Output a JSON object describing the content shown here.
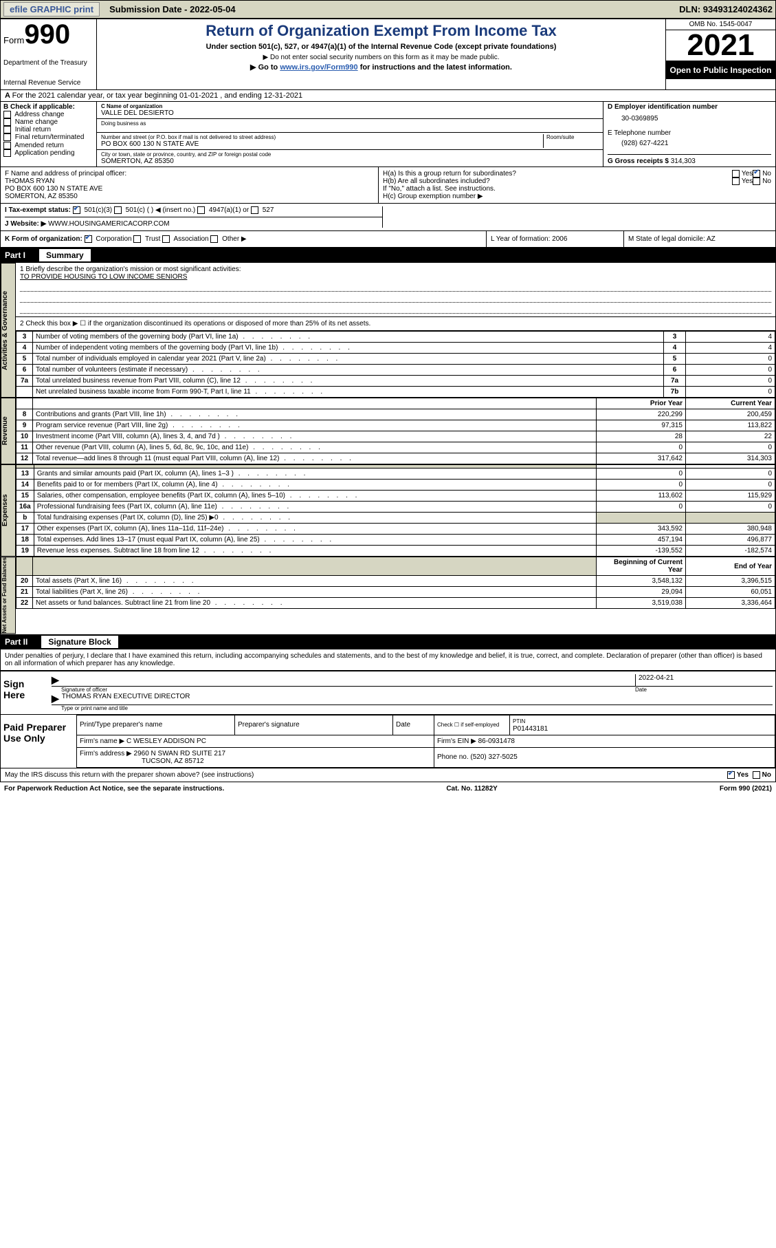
{
  "topbar": {
    "efile": "efile GRAPHIC print",
    "sub_lbl": "Submission Date - ",
    "sub_date": "2022-05-04",
    "dln": "DLN: 93493124024362"
  },
  "header": {
    "form_word": "Form",
    "form_num": "990",
    "dept": "Department of the Treasury",
    "irs": "Internal Revenue Service",
    "title": "Return of Organization Exempt From Income Tax",
    "sub": "Under section 501(c), 527, or 4947(a)(1) of the Internal Revenue Code (except private foundations)",
    "note1": "▶ Do not enter social security numbers on this form as it may be made public.",
    "note2_pre": "▶ Go to ",
    "note2_link": "www.irs.gov/Form990",
    "note2_post": " for instructions and the latest information.",
    "omb": "OMB No. 1545-0047",
    "year": "2021",
    "open": "Open to Public Inspection"
  },
  "yearline": "For the 2021 calendar year, or tax year beginning 01-01-2021   , and ending 12-31-2021",
  "b": {
    "hdr": "B Check if applicable:",
    "opts": [
      "Address change",
      "Name change",
      "Initial return",
      "Final return/terminated",
      "Amended return",
      "Application pending"
    ]
  },
  "c": {
    "name_lbl": "C Name of organization",
    "name": "VALLE DEL DESIERTO",
    "dba_lbl": "Doing business as",
    "street_lbl": "Number and street (or P.O. box if mail is not delivered to street address)",
    "room_lbl": "Room/suite",
    "street": "PO BOX 600 130 N STATE AVE",
    "city_lbl": "City or town, state or province, country, and ZIP or foreign postal code",
    "city": "SOMERTON, AZ  85350"
  },
  "d": {
    "ein_lbl": "D Employer identification number",
    "ein": "30-0369895",
    "tel_lbl": "E Telephone number",
    "tel": "(928) 627-4221",
    "gross_lbl": "G Gross receipts $",
    "gross": "314,303"
  },
  "f": {
    "lbl": "F  Name and address of principal officer:",
    "l1": "THOMAS RYAN",
    "l2": "PO BOX 600 130 N STATE AVE",
    "l3": "SOMERTON, AZ  85350"
  },
  "h": {
    "a": "H(a)  Is this a group return for subordinates?",
    "b": "H(b)  Are all subordinates included?",
    "bnote": "If \"No,\" attach a list. See instructions.",
    "c": "H(c)  Group exemption number ▶",
    "yes": "Yes",
    "no": "No"
  },
  "status": {
    "i": "I   Tax-exempt status:",
    "o1": "501(c)(3)",
    "o2": "501(c) (  ) ◀ (insert no.)",
    "o3": "4947(a)(1) or",
    "o4": "527",
    "j": "J   Website: ▶",
    "site": "WWW.HOUSINGAMERICACORP.COM"
  },
  "klm": {
    "k": "K Form of organization:",
    "k1": "Corporation",
    "k2": "Trust",
    "k3": "Association",
    "k4": "Other ▶",
    "l": "L Year of formation: 2006",
    "m": "M State of legal domicile: AZ"
  },
  "part1": {
    "num": "Part I",
    "lbl": "Summary"
  },
  "summary": {
    "q1": "1   Briefly describe the organization's mission or most significant activities:",
    "q1a": "TO PROVIDE HOUSING TO LOW INCOME SENIORS",
    "q2": "2   Check this box ▶ ☐  if the organization discontinued its operations or disposed of more than 25% of its net assets."
  },
  "vtabs": {
    "gov": "Activities & Governance",
    "rev": "Revenue",
    "exp": "Expenses",
    "net": "Net Assets or Fund Balances"
  },
  "govrows": [
    {
      "n": "3",
      "d": "Number of voting members of the governing body (Part VI, line 1a)",
      "b": "3",
      "v": "4"
    },
    {
      "n": "4",
      "d": "Number of independent voting members of the governing body (Part VI, line 1b)",
      "b": "4",
      "v": "4"
    },
    {
      "n": "5",
      "d": "Total number of individuals employed in calendar year 2021 (Part V, line 2a)",
      "b": "5",
      "v": "0"
    },
    {
      "n": "6",
      "d": "Total number of volunteers (estimate if necessary)",
      "b": "6",
      "v": "0"
    },
    {
      "n": "7a",
      "d": "Total unrelated business revenue from Part VIII, column (C), line 12",
      "b": "7a",
      "v": "0"
    },
    {
      "n": "",
      "d": "Net unrelated business taxable income from Form 990-T, Part I, line 11",
      "b": "7b",
      "v": "0"
    }
  ],
  "colhdr": {
    "prior": "Prior Year",
    "curr": "Current Year",
    "beg": "Beginning of Current Year",
    "end": "End of Year"
  },
  "revrows": [
    {
      "n": "8",
      "d": "Contributions and grants (Part VIII, line 1h)",
      "p": "220,299",
      "c": "200,459"
    },
    {
      "n": "9",
      "d": "Program service revenue (Part VIII, line 2g)",
      "p": "97,315",
      "c": "113,822"
    },
    {
      "n": "10",
      "d": "Investment income (Part VIII, column (A), lines 3, 4, and 7d )",
      "p": "28",
      "c": "22"
    },
    {
      "n": "11",
      "d": "Other revenue (Part VIII, column (A), lines 5, 6d, 8c, 9c, 10c, and 11e)",
      "p": "0",
      "c": "0"
    },
    {
      "n": "12",
      "d": "Total revenue—add lines 8 through 11 (must equal Part VIII, column (A), line 12)",
      "p": "317,642",
      "c": "314,303"
    }
  ],
  "exprows": [
    {
      "n": "13",
      "d": "Grants and similar amounts paid (Part IX, column (A), lines 1–3 )",
      "p": "0",
      "c": "0"
    },
    {
      "n": "14",
      "d": "Benefits paid to or for members (Part IX, column (A), line 4)",
      "p": "0",
      "c": "0"
    },
    {
      "n": "15",
      "d": "Salaries, other compensation, employee benefits (Part IX, column (A), lines 5–10)",
      "p": "113,602",
      "c": "115,929"
    },
    {
      "n": "16a",
      "d": "Professional fundraising fees (Part IX, column (A), line 11e)",
      "p": "0",
      "c": "0"
    },
    {
      "n": "b",
      "d": "Total fundraising expenses (Part IX, column (D), line 25) ▶0",
      "p": "",
      "c": "",
      "grey": true
    },
    {
      "n": "17",
      "d": "Other expenses (Part IX, column (A), lines 11a–11d, 11f–24e)",
      "p": "343,592",
      "c": "380,948"
    },
    {
      "n": "18",
      "d": "Total expenses. Add lines 13–17 (must equal Part IX, column (A), line 25)",
      "p": "457,194",
      "c": "496,877"
    },
    {
      "n": "19",
      "d": "Revenue less expenses. Subtract line 18 from line 12",
      "p": "-139,552",
      "c": "-182,574"
    }
  ],
  "netrows": [
    {
      "n": "20",
      "d": "Total assets (Part X, line 16)",
      "p": "3,548,132",
      "c": "3,396,515"
    },
    {
      "n": "21",
      "d": "Total liabilities (Part X, line 26)",
      "p": "29,094",
      "c": "60,051"
    },
    {
      "n": "22",
      "d": "Net assets or fund balances. Subtract line 21 from line 20",
      "p": "3,519,038",
      "c": "3,336,464"
    }
  ],
  "part2": {
    "num": "Part II",
    "lbl": "Signature Block"
  },
  "perjury": "Under penalties of perjury, I declare that I have examined this return, including accompanying schedules and statements, and to the best of my knowledge and belief, it is true, correct, and complete. Declaration of preparer (other than officer) is based on all information of which preparer has any knowledge.",
  "sign": {
    "here": "Sign Here",
    "sig_lbl": "Signature of officer",
    "date": "2022-04-21",
    "date_lbl": "Date",
    "name": "THOMAS RYAN  EXECUTIVE DIRECTOR",
    "name_lbl": "Type or print name and title"
  },
  "prep": {
    "hdr": "Paid Preparer Use Only",
    "c1": "Print/Type preparer's name",
    "c2": "Preparer's signature",
    "c3": "Date",
    "c4a": "Check ☐ if self-employed",
    "c4b": "PTIN",
    "ptin": "P01443181",
    "firm_lbl": "Firm's name    ▶",
    "firm": "C WESLEY ADDISON PC",
    "ein_lbl": "Firm's EIN ▶",
    "ein": "86-0931478",
    "addr_lbl": "Firm's address ▶",
    "addr1": "2960 N SWAN RD SUITE 217",
    "addr2": "TUCSON, AZ  85712",
    "phone_lbl": "Phone no.",
    "phone": "(520) 327-5025"
  },
  "discuss": {
    "q": "May the IRS discuss this return with the preparer shown above? (see instructions)",
    "yes": "Yes",
    "no": "No"
  },
  "footer": {
    "l": "For Paperwork Reduction Act Notice, see the separate instructions.",
    "m": "Cat. No. 11282Y",
    "r": "Form 990 (2021)"
  }
}
